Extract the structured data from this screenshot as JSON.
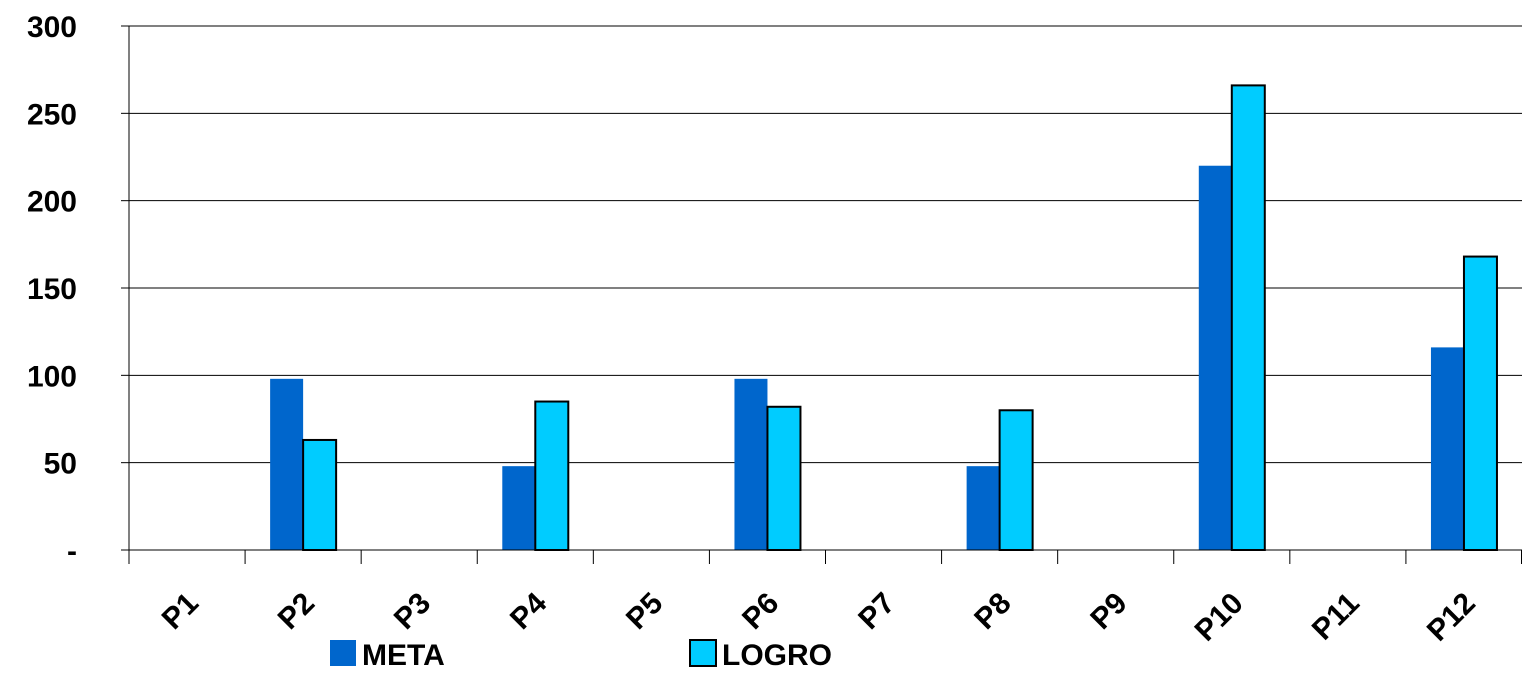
{
  "chart_data": {
    "type": "bar",
    "categories": [
      "P1",
      "P2",
      "P3",
      "P4",
      "P5",
      "P6",
      "P7",
      "P8",
      "P9",
      "P10",
      "P11",
      "P12"
    ],
    "series": [
      {
        "name": "META",
        "color": "#0066CC",
        "values": [
          0,
          98,
          0,
          48,
          0,
          98,
          0,
          48,
          0,
          220,
          0,
          116
        ]
      },
      {
        "name": "LOGRO",
        "color": "#00CCFF",
        "values": [
          0,
          63,
          0,
          85,
          0,
          82,
          0,
          80,
          0,
          266,
          0,
          168
        ]
      }
    ],
    "ylim": [
      0,
      300
    ],
    "yticks": [
      {
        "value": 0,
        "label": "-"
      },
      {
        "value": 50,
        "label": "50"
      },
      {
        "value": 100,
        "label": "100"
      },
      {
        "value": 150,
        "label": "150"
      },
      {
        "value": 200,
        "label": "200"
      },
      {
        "value": 250,
        "label": "250"
      },
      {
        "value": 300,
        "label": "300"
      }
    ],
    "grid": true,
    "legend_position": "bottom",
    "title": "",
    "xlabel": "",
    "ylabel": ""
  }
}
